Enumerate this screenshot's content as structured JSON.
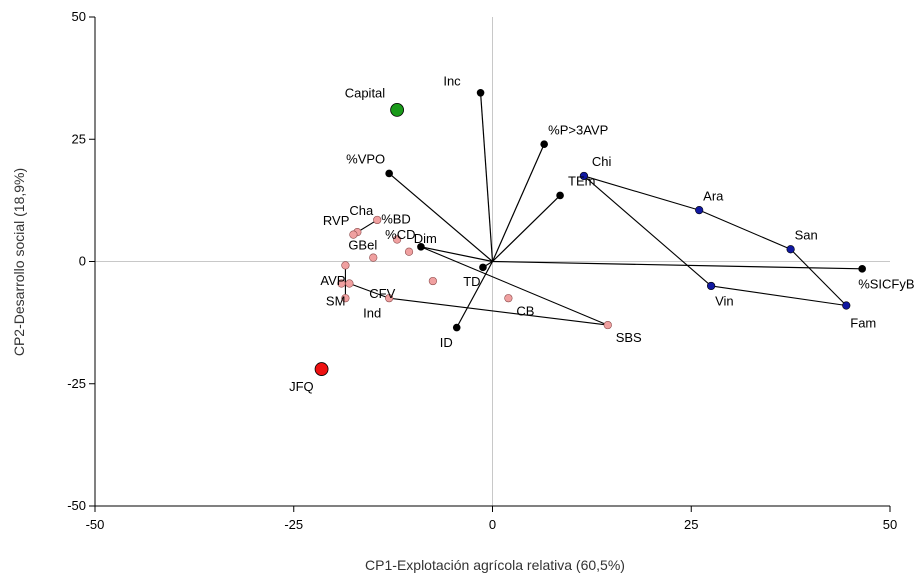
{
  "chart_data": {
    "type": "scatter",
    "xlabel": "CP1-Explotación agrícola relativa (60,5%)",
    "ylabel": "CP2-Desarrollo social (18,9%)",
    "xlim": [
      -50,
      50
    ],
    "ylim": [
      -50,
      50
    ],
    "xticks": [
      -50,
      -25,
      0,
      25,
      50
    ],
    "yticks": [
      -50,
      -25,
      0,
      25,
      50
    ],
    "colors": {
      "variable": "#000000",
      "blue": "#1018a0",
      "pink": "#f0a0a0",
      "capital": "#1a9a1a",
      "jfq": "#ee1111"
    },
    "variables": [
      {
        "label": "Inc",
        "x": -1.5,
        "y": 34.5,
        "lx": -4,
        "ly": 36,
        "anchor": "end"
      },
      {
        "label": "%P>3AVP",
        "x": 6.5,
        "y": 24,
        "lx": 7,
        "ly": 26,
        "anchor": "start"
      },
      {
        "label": "%VPO",
        "x": -13,
        "y": 18,
        "lx": -13.5,
        "ly": 20,
        "anchor": "end"
      },
      {
        "label": "TEm",
        "x": 8.5,
        "y": 13.5,
        "lx": 9.5,
        "ly": 15.5,
        "anchor": "start"
      },
      {
        "label": "Dim",
        "x": -9,
        "y": 3,
        "lx": -7,
        "ly": 3.8,
        "anchor": "end"
      },
      {
        "label": "TD",
        "x": -1.2,
        "y": -1.2,
        "lx": -1.5,
        "ly": -5,
        "anchor": "end"
      },
      {
        "label": "ID",
        "x": -4.5,
        "y": -13.5,
        "lx": -5,
        "ly": -17.5,
        "anchor": "end"
      },
      {
        "label": "%SICFyB",
        "x": 46.5,
        "y": -1.5,
        "lx": 46,
        "ly": -5.5,
        "anchor": "start"
      }
    ],
    "groups_blue": [
      {
        "label": "Chi",
        "x": 11.5,
        "y": 17.5,
        "lx": 12.5,
        "ly": 19.5,
        "anchor": "start"
      },
      {
        "label": "Ara",
        "x": 26,
        "y": 10.5,
        "lx": 26.5,
        "ly": 12.5,
        "anchor": "start"
      },
      {
        "label": "San",
        "x": 37.5,
        "y": 2.5,
        "lx": 38,
        "ly": 4.5,
        "anchor": "start"
      },
      {
        "label": "Vin",
        "x": 27.5,
        "y": -5,
        "lx": 28,
        "ly": -9,
        "anchor": "start"
      },
      {
        "label": "Fam",
        "x": 44.5,
        "y": -9,
        "lx": 45,
        "ly": -13.5,
        "anchor": "start"
      }
    ],
    "groups_pink": [
      {
        "label": "Cha",
        "x": -17,
        "y": 6,
        "lx": -18,
        "ly": 9.5,
        "anchor": "start"
      },
      {
        "label": "%BD",
        "x": -14.5,
        "y": 8.5,
        "lx": -14,
        "ly": 7.8,
        "anchor": "start"
      },
      {
        "label": "RVP",
        "x": -17.5,
        "y": 5.5,
        "lx": -18,
        "ly": 7.5,
        "anchor": "end"
      },
      {
        "label": "%CD",
        "x": -12,
        "y": 4.5,
        "lx": -13.5,
        "ly": 4.6,
        "anchor": "start"
      },
      {
        "label": "GBel",
        "x": -15,
        "y": 0.8,
        "lx": -14.5,
        "ly": 2.5,
        "anchor": "end"
      },
      {
        "label": "",
        "x": -18.5,
        "y": -0.8,
        "lx": 0,
        "ly": 0,
        "anchor": "start"
      },
      {
        "label": "AVP",
        "x": -19,
        "y": -4.5,
        "lx": -18.5,
        "ly": -4.8,
        "anchor": "end"
      },
      {
        "label": "",
        "x": -18,
        "y": -4.5,
        "lx": 0,
        "ly": 0,
        "anchor": "start"
      },
      {
        "label": "SM",
        "x": -18.5,
        "y": -7.5,
        "lx": -18.5,
        "ly": -9,
        "anchor": "end"
      },
      {
        "label": "CFV",
        "x": -7.5,
        "y": -4,
        "lx": -15.5,
        "ly": -7.5,
        "anchor": "start"
      },
      {
        "label": "Ind",
        "x": -13,
        "y": -7.5,
        "lx": -14,
        "ly": -11.5,
        "anchor": "end"
      },
      {
        "label": "",
        "x": -10.5,
        "y": 2,
        "lx": 0,
        "ly": 0,
        "anchor": "start"
      },
      {
        "label": "CB",
        "x": 2,
        "y": -7.5,
        "lx": 3,
        "ly": -11,
        "anchor": "start"
      },
      {
        "label": "SBS",
        "x": 14.5,
        "y": -13,
        "lx": 15.5,
        "ly": -16.5,
        "anchor": "start"
      }
    ],
    "highlights": [
      {
        "label": "Capital",
        "x": -12,
        "y": 31,
        "color": "#1a9a1a",
        "lx": -13.5,
        "ly": 33.5,
        "anchor": "end"
      },
      {
        "label": "JFQ",
        "x": -21.5,
        "y": -22,
        "color": "#ee1111",
        "lx": -22.5,
        "ly": -26.5,
        "anchor": "end"
      }
    ],
    "connectors": [
      [
        [
          11.5,
          17.5
        ],
        [
          26,
          10.5
        ]
      ],
      [
        [
          26,
          10.5
        ],
        [
          37.5,
          2.5
        ]
      ],
      [
        [
          37.5,
          2.5
        ],
        [
          44.5,
          -9
        ]
      ],
      [
        [
          11.5,
          17.5
        ],
        [
          27.5,
          -5
        ]
      ],
      [
        [
          27.5,
          -5
        ],
        [
          44.5,
          -9
        ]
      ],
      [
        [
          -17.5,
          5.5
        ],
        [
          -14.5,
          8.5
        ]
      ],
      [
        [
          -18.5,
          -0.8
        ],
        [
          -18.5,
          -7.5
        ]
      ],
      [
        [
          -18,
          -4.5
        ],
        [
          -13,
          -7.5
        ]
      ],
      [
        [
          -13,
          -7.5
        ],
        [
          14.5,
          -13
        ]
      ],
      [
        [
          -9,
          3
        ],
        [
          14.5,
          -13
        ]
      ]
    ],
    "grid": false
  }
}
